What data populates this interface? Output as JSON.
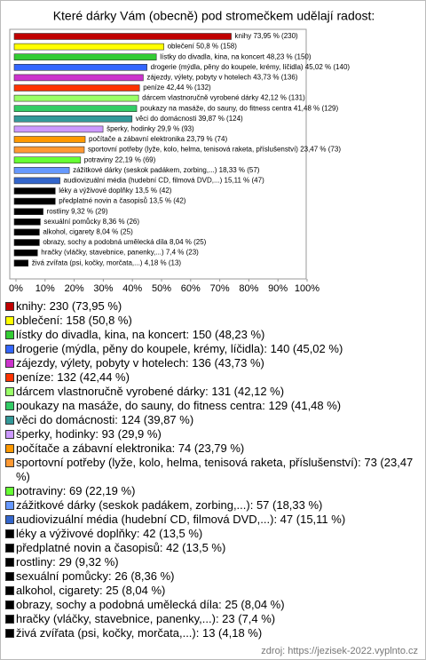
{
  "chart_data": {
    "type": "bar",
    "orientation": "horizontal",
    "title": "Které dárky Vám (obecně) pod stromečkem udělají radost:",
    "values": [
      73.95,
      50.8,
      48.23,
      45.02,
      43.73,
      42.44,
      42.12,
      41.48,
      39.87,
      29.9,
      23.79,
      23.47,
      22.19,
      18.33,
      15.11,
      13.5,
      13.5,
      9.32,
      8.36,
      8.04,
      8.04,
      7.4,
      4.18
    ],
    "value_labels": [
      "knihy 73,95 % (230)",
      "oblečení 50,8 % (158)",
      "lístky do divadla, kina, na koncert 48,23 % (150)",
      "drogerie (mýdla, pěny do koupele, krémy, líčidla) 45,02 % (140)",
      "zájezdy, výlety, pobyty v hotelech 43,73 % (136)",
      "peníze 42,44 % (132)",
      "dárcem vlastnoručně vyrobené dárky 42,12 % (131)",
      "poukazy na masáže, do sauny, do fitness centra 41,48 % (129)",
      "věci do domácnosti 39,87 % (124)",
      "šperky, hodinky 29,9 % (93)",
      "počítače a zábavní elektronika 23,79 % (74)",
      "sportovní potřeby (lyže, kolo, helma, tenisová raketa, příslušenství) 23,47 % (73)",
      "potraviny 22,19 % (69)",
      "zážitkové dárky (seskok padákem, zorbing,...) 18,33 % (57)",
      "audiovizuální média (hudební CD, filmová DVD,...) 15,11 % (47)",
      "léky a výživové doplňky 13,5 % (42)",
      "předplatné novin a časopisů 13,5 % (42)",
      "rostliny 9,32 % (29)",
      "sexuální pomůcky 8,36 % (26)",
      "alkohol, cigarety 8,04 % (25)",
      "obrazy, sochy a podobná umělecká díla 8,04 % (25)",
      "hračky (vláčky, stavebnice, panenky,...) 7,4 % (23)",
      "živá zvířata (psi, kočky, morčata,...) 4,18 % (13)"
    ],
    "legend_labels": [
      "knihy: 230 (73,95 %)",
      "oblečení: 158 (50,8 %)",
      "lístky do divadla, kina, na koncert: 150 (48,23 %)",
      "drogerie (mýdla, pěny do koupele, krémy, líčidla): 140 (45,02 %)",
      "zájezdy, výlety, pobyty v hotelech: 136 (43,73 %)",
      "peníze: 132 (42,44 %)",
      "dárcem vlastnoručně vyrobené dárky: 131 (42,12 %)",
      "poukazy na masáže, do sauny, do fitness centra: 129 (41,48 %)",
      "věci do domácnosti: 124 (39,87 %)",
      "šperky, hodinky: 93 (29,9 %)",
      "počítače a zábavní elektronika: 74 (23,79 %)",
      "sportovní potřeby (lyže, kolo, helma, tenisová raketa, příslušenství): 73 (23,47 %)",
      "potraviny: 69 (22,19 %)",
      "zážitkové dárky (seskok padákem, zorbing,...): 57 (18,33 %)",
      "audiovizuální média (hudební CD, filmová DVD,...): 47 (15,11 %)",
      "léky a výživové doplňky: 42 (13,5 %)",
      "předplatné novin a časopisů: 42 (13,5 %)",
      "rostliny: 29 (9,32 %)",
      "sexuální pomůcky: 26 (8,36 %)",
      "alkohol, cigarety: 25 (8,04 %)",
      "obrazy, sochy a podobná umělecká díla: 25 (8,04 %)",
      "hračky (vláčky, stavebnice, panenky,...): 23 (7,4 %)",
      "živá zvířata (psi, kočky, morčata,...): 13 (4,18 %)"
    ],
    "colors": [
      "#c00000",
      "#ffff00",
      "#33cc33",
      "#3366ff",
      "#cc33cc",
      "#ff3300",
      "#99ff66",
      "#33cc66",
      "#339999",
      "#cc99ff",
      "#ff9900",
      "#ff9933",
      "#66ff33",
      "#6699ff",
      "#3366cc",
      "#000000",
      "#000000",
      "#000000",
      "#000000",
      "#000000",
      "#000000",
      "#000000",
      "#000000"
    ],
    "xlim": [
      0,
      100
    ],
    "xticks": [
      {
        "value": 0,
        "label": "0%"
      },
      {
        "value": 10,
        "label": "10%"
      },
      {
        "value": 20,
        "label": "20%"
      },
      {
        "value": 30,
        "label": "30%"
      },
      {
        "value": 40,
        "label": "40%"
      },
      {
        "value": 50,
        "label": "50%"
      },
      {
        "value": 60,
        "label": "60%"
      },
      {
        "value": 70,
        "label": "70%"
      },
      {
        "value": 80,
        "label": "80%"
      },
      {
        "value": 90,
        "label": "90%"
      },
      {
        "value": 100,
        "label": "100%"
      }
    ],
    "source": "zdroj: https://jezisek-2022.vyplnto.cz"
  }
}
